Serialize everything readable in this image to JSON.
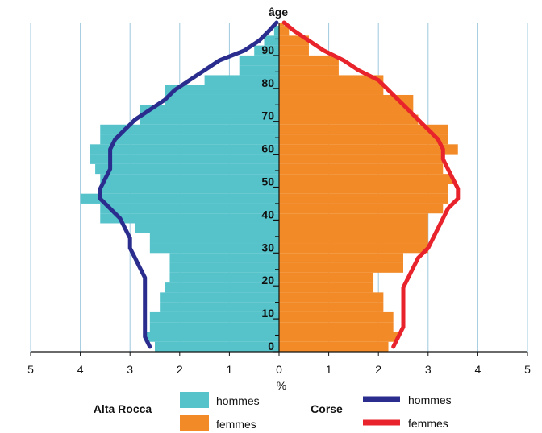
{
  "chart_data": {
    "type": "bar",
    "subtype": "population-pyramid",
    "title": "âge",
    "xlabel": "%",
    "xlim": [
      -5,
      5
    ],
    "x_ticks": [
      -5,
      -4,
      -3,
      -2,
      -1,
      0,
      1,
      2,
      3,
      4,
      5
    ],
    "x_tick_labels": [
      "5",
      "4",
      "3",
      "2",
      "1",
      "0",
      "1",
      "2",
      "3",
      "4",
      "5"
    ],
    "ylim": [
      0,
      100
    ],
    "y_ticks": [
      0,
      10,
      20,
      30,
      40,
      50,
      60,
      70,
      80,
      90
    ],
    "grid": "vertical",
    "age_bands": [
      0,
      3,
      6,
      9,
      12,
      15,
      18,
      21,
      24,
      27,
      30,
      33,
      36,
      39,
      42,
      45,
      48,
      51,
      54,
      57,
      60,
      63,
      66,
      69,
      72,
      75,
      78,
      81,
      84,
      87,
      90,
      93,
      96,
      99
    ],
    "band_width": 3,
    "series": [
      {
        "group": "Alta Rocca",
        "name": "hommes",
        "kind": "bars",
        "color": "#56c3cb",
        "values": [
          2.5,
          2.7,
          2.6,
          2.6,
          2.4,
          2.4,
          2.3,
          2.2,
          2.2,
          2.2,
          2.6,
          2.6,
          2.9,
          3.6,
          3.6,
          4.0,
          3.6,
          3.6,
          3.7,
          3.8,
          3.8,
          3.6,
          3.6,
          2.8,
          2.8,
          2.3,
          2.3,
          1.5,
          0.8,
          0.8,
          0.5,
          0.3,
          0.1,
          0.0
        ]
      },
      {
        "group": "Alta Rocca",
        "name": "femmes",
        "kind": "bars",
        "color": "#f28a28",
        "values": [
          2.2,
          2.4,
          2.3,
          2.3,
          2.1,
          2.1,
          1.9,
          1.9,
          2.5,
          2.5,
          3.0,
          3.0,
          3.0,
          3.0,
          3.3,
          3.4,
          3.4,
          3.5,
          3.3,
          3.3,
          3.6,
          3.4,
          3.4,
          2.8,
          2.7,
          2.7,
          2.1,
          2.1,
          1.2,
          1.2,
          0.6,
          0.6,
          0.2,
          0.1
        ]
      },
      {
        "group": "Corse",
        "name": "hommes",
        "kind": "line",
        "color": "#2a2d8e",
        "values": [
          2.6,
          2.7,
          2.7,
          2.7,
          2.7,
          2.7,
          2.7,
          2.7,
          2.8,
          2.9,
          3.0,
          3.0,
          3.1,
          3.2,
          3.4,
          3.6,
          3.6,
          3.5,
          3.4,
          3.4,
          3.4,
          3.3,
          3.1,
          2.9,
          2.6,
          2.3,
          2.1,
          1.8,
          1.5,
          1.2,
          0.7,
          0.4,
          0.2,
          0.05
        ]
      },
      {
        "group": "Corse",
        "name": "femmes",
        "kind": "line",
        "color": "#e8232b",
        "values": [
          2.3,
          2.4,
          2.5,
          2.5,
          2.5,
          2.5,
          2.5,
          2.6,
          2.7,
          2.8,
          3.0,
          3.1,
          3.2,
          3.3,
          3.4,
          3.6,
          3.6,
          3.5,
          3.4,
          3.3,
          3.3,
          3.2,
          3.0,
          2.8,
          2.6,
          2.4,
          2.2,
          2.0,
          1.6,
          1.3,
          0.9,
          0.6,
          0.3,
          0.1
        ]
      }
    ],
    "legend": {
      "placement": "bottom",
      "groups": [
        {
          "title": "Alta Rocca",
          "entries": [
            {
              "label": "hommes",
              "color": "#56c3cb",
              "kind": "swatch"
            },
            {
              "label": "femmes",
              "color": "#f28a28",
              "kind": "swatch"
            }
          ]
        },
        {
          "title": "Corse",
          "entries": [
            {
              "label": "hommes",
              "color": "#2a2d8e",
              "kind": "line"
            },
            {
              "label": "femmes",
              "color": "#e8232b",
              "kind": "line"
            }
          ]
        }
      ]
    },
    "colors": {
      "grid": "#9ec9de",
      "axis": "#111111"
    }
  }
}
